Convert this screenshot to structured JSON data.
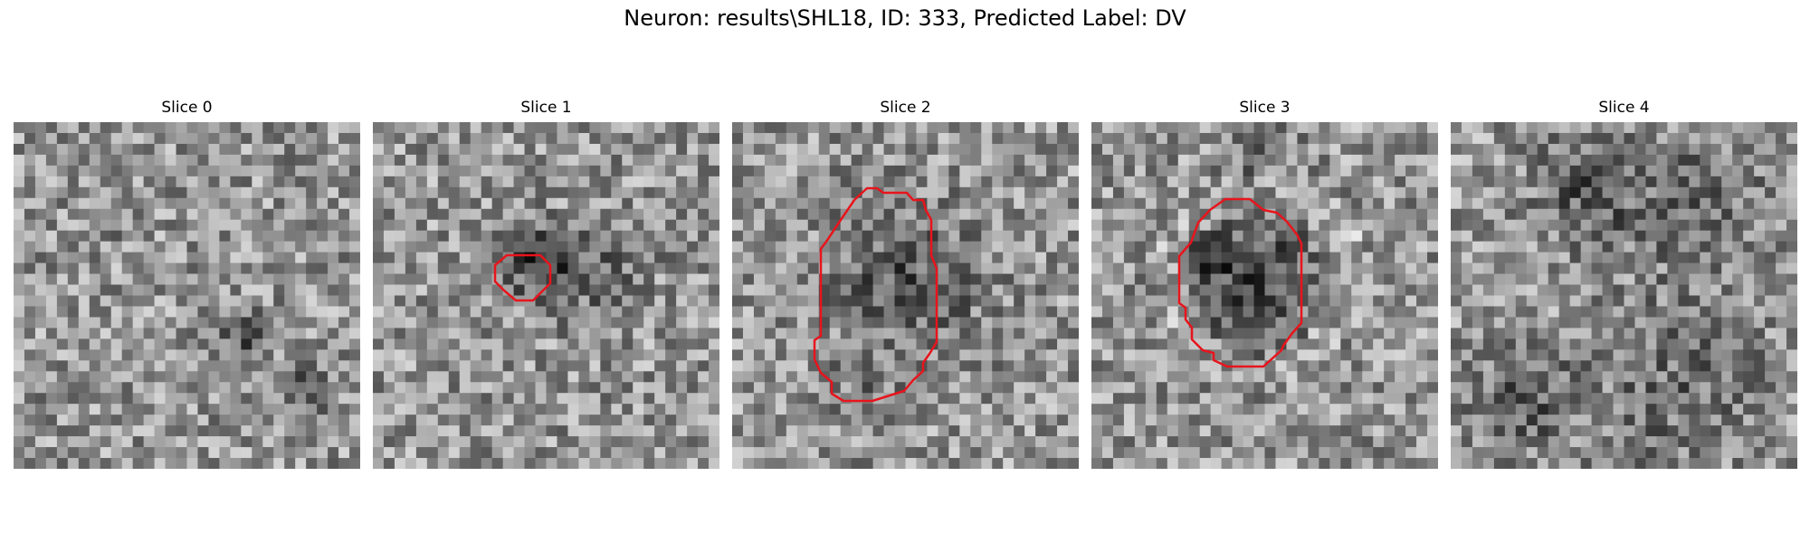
{
  "figure": {
    "title": "Neuron: results\\SHL18, ID: 333, Predicted Label: DV"
  },
  "panels": [
    {
      "title": "Slice 0",
      "has_contour": false
    },
    {
      "title": "Slice 1",
      "has_contour": true
    },
    {
      "title": "Slice 2",
      "has_contour": true
    },
    {
      "title": "Slice 3",
      "has_contour": true
    },
    {
      "title": "Slice 4",
      "has_contour": false
    }
  ],
  "colors": {
    "contour": "#e8141c",
    "background": "#ffffff"
  }
}
